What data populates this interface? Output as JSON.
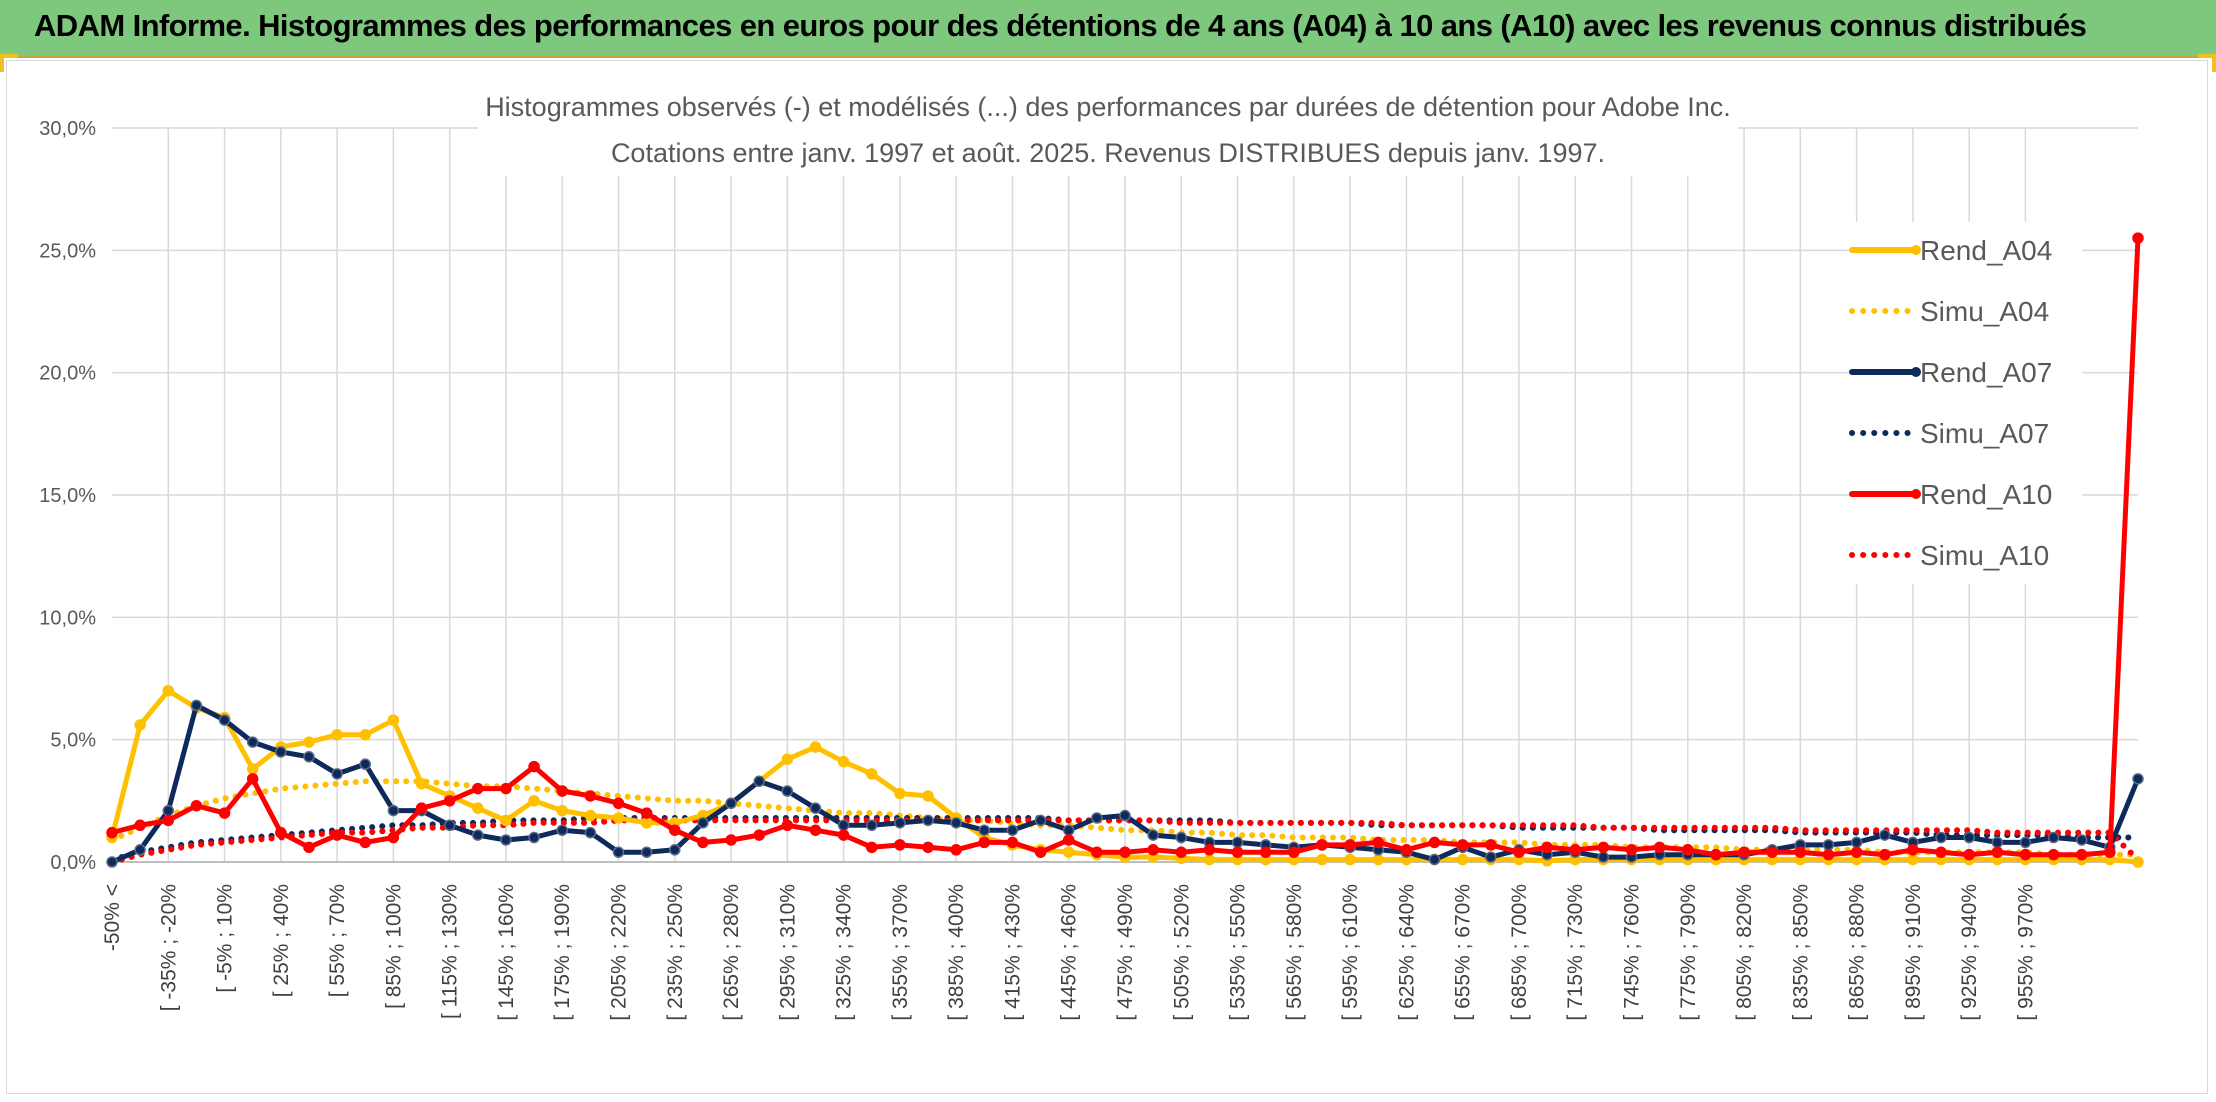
{
  "banner": {
    "title": "ADAM Informe. Histogrammes des performances en euros pour des détentions de 4 ans (A04) à 10 ans (A10) avec les revenus connus distribués"
  },
  "colors": {
    "banner_bg": "#7ec87e",
    "A04": "#ffc000",
    "A07": "#0e2a5c",
    "A10": "#ff0000",
    "grid": "#d9d9d9"
  },
  "chart_data": {
    "type": "line",
    "title": "Histogrammes observés (-) et modélisés (...) des performances par durées de détention pour Adobe Inc.",
    "subtitle": "Cotations entre janv. 1997 et août. 2025. Revenus DISTRIBUES depuis janv. 1997.",
    "ylim": [
      0,
      30
    ],
    "yticks": [
      "0,0%",
      "5,0%",
      "10,0%",
      "15,0%",
      "20,0%",
      "25,0%",
      "30,0%"
    ],
    "x_tick_labels": [
      "-50% <",
      "[ -35% ; -20%",
      "[ -5% ; 10%",
      "[ 25% ; 40%",
      "[ 55% ; 70%",
      "[ 85% ; 100%",
      "[ 115% ; 130%",
      "[ 145% ; 160%",
      "[ 175% ; 190%",
      "[ 205% ; 220%",
      "[ 235% ; 250%",
      "[ 265% ; 280%",
      "[ 295% ; 310%",
      "[ 325% ; 340%",
      "[ 355% ; 370%",
      "[ 385% ; 400%",
      "[ 415% ; 430%",
      "[ 445% ; 460%",
      "[ 475% ; 490%",
      "[ 505% ; 520%",
      "[ 535% ; 550%",
      "[ 565% ; 580%",
      "[ 595% ; 610%",
      "[ 625% ; 640%",
      "[ 655% ; 670%",
      "[ 685% ; 700%",
      "[ 715% ; 730%",
      "[ 745% ; 760%",
      "[ 775% ; 790%",
      "[ 805% ; 820%",
      "[ 835% ; 850%",
      "[ 865% ; 880%",
      "[ 895% ; 910%",
      "[ 925% ; 940%",
      "[ 955% ; 970%"
    ],
    "n_points": 73,
    "grid": true,
    "legend_position": "right",
    "series": [
      {
        "name": "Rend_A04",
        "style": "solid",
        "color": "#ffc000",
        "values": [
          1.0,
          5.6,
          7.0,
          6.3,
          5.9,
          3.8,
          4.7,
          4.9,
          5.2,
          5.2,
          5.8,
          3.2,
          2.7,
          2.2,
          1.7,
          2.5,
          2.1,
          1.9,
          1.8,
          1.6,
          1.6,
          1.9,
          2.4,
          3.3,
          4.2,
          4.7,
          4.1,
          3.6,
          2.8,
          2.7,
          1.8,
          1.0,
          0.7,
          0.5,
          0.4,
          0.3,
          0.2,
          0.2,
          0.15,
          0.1,
          0.1,
          0.1,
          0.1,
          0.1,
          0.1,
          0.1,
          0.1,
          0.1,
          0.1,
          0.1,
          0.1,
          0.05,
          0.1,
          0.1,
          0.1,
          0.1,
          0.1,
          0.1,
          0.1,
          0.1,
          0.1,
          0.1,
          0.1,
          0.1,
          0.1,
          0.1,
          0.1,
          0.1,
          0.1,
          0.1,
          0.1,
          0.1,
          0.0
        ]
      },
      {
        "name": "Simu_A04",
        "style": "dotted",
        "color": "#ffc000",
        "values": [
          0.9,
          1.4,
          1.9,
          2.3,
          2.6,
          2.8,
          3.0,
          3.1,
          3.2,
          3.3,
          3.3,
          3.3,
          3.2,
          3.1,
          3.1,
          3.0,
          2.9,
          2.8,
          2.7,
          2.6,
          2.5,
          2.5,
          2.4,
          2.3,
          2.2,
          2.1,
          2.0,
          2.0,
          1.9,
          1.8,
          1.7,
          1.7,
          1.6,
          1.5,
          1.5,
          1.4,
          1.3,
          1.3,
          1.2,
          1.2,
          1.1,
          1.1,
          1.0,
          1.0,
          1.0,
          0.9,
          0.9,
          0.9,
          0.8,
          0.8,
          0.8,
          0.7,
          0.7,
          0.7,
          0.6,
          0.6,
          0.6,
          0.6,
          0.5,
          0.5,
          0.5,
          0.5,
          0.5,
          0.4,
          0.4,
          0.4,
          0.4,
          0.4,
          0.4,
          0.3,
          0.3,
          0.3,
          0.3
        ]
      },
      {
        "name": "Rend_A07",
        "style": "solid",
        "color": "#0e2a5c",
        "values": [
          0.0,
          0.5,
          2.1,
          6.4,
          5.8,
          4.9,
          4.5,
          4.3,
          3.6,
          4.0,
          2.1,
          2.1,
          1.5,
          1.1,
          0.9,
          1.0,
          1.3,
          1.2,
          0.4,
          0.4,
          0.5,
          1.6,
          2.4,
          3.3,
          2.9,
          2.2,
          1.5,
          1.5,
          1.6,
          1.7,
          1.6,
          1.3,
          1.3,
          1.7,
          1.3,
          1.8,
          1.9,
          1.1,
          1.0,
          0.8,
          0.8,
          0.7,
          0.6,
          0.7,
          0.6,
          0.5,
          0.4,
          0.1,
          0.6,
          0.2,
          0.5,
          0.3,
          0.4,
          0.2,
          0.2,
          0.3,
          0.3,
          0.3,
          0.3,
          0.5,
          0.7,
          0.7,
          0.8,
          1.1,
          0.8,
          1.0,
          1.0,
          0.8,
          0.8,
          1.0,
          0.9,
          0.6,
          3.4
        ]
      },
      {
        "name": "Simu_A07",
        "style": "dotted",
        "color": "#0e2a5c",
        "values": [
          0.1,
          0.4,
          0.6,
          0.8,
          0.9,
          1.0,
          1.1,
          1.2,
          1.3,
          1.4,
          1.5,
          1.5,
          1.6,
          1.6,
          1.7,
          1.7,
          1.7,
          1.8,
          1.8,
          1.8,
          1.8,
          1.8,
          1.8,
          1.8,
          1.8,
          1.8,
          1.8,
          1.8,
          1.8,
          1.8,
          1.8,
          1.8,
          1.8,
          1.8,
          1.7,
          1.7,
          1.7,
          1.7,
          1.7,
          1.7,
          1.6,
          1.6,
          1.6,
          1.6,
          1.6,
          1.5,
          1.5,
          1.5,
          1.5,
          1.5,
          1.4,
          1.4,
          1.4,
          1.4,
          1.4,
          1.3,
          1.3,
          1.3,
          1.3,
          1.3,
          1.2,
          1.2,
          1.2,
          1.2,
          1.2,
          1.1,
          1.1,
          1.1,
          1.1,
          1.1,
          1.0,
          1.0,
          1.0
        ]
      },
      {
        "name": "Rend_A10",
        "style": "solid",
        "color": "#ff0000",
        "values": [
          1.2,
          1.5,
          1.7,
          2.3,
          2.0,
          3.4,
          1.2,
          0.6,
          1.1,
          0.8,
          1.0,
          2.2,
          2.5,
          3.0,
          3.0,
          3.9,
          2.9,
          2.7,
          2.4,
          2.0,
          1.3,
          0.8,
          0.9,
          1.1,
          1.5,
          1.3,
          1.1,
          0.6,
          0.7,
          0.6,
          0.5,
          0.8,
          0.8,
          0.4,
          0.9,
          0.4,
          0.4,
          0.5,
          0.4,
          0.5,
          0.4,
          0.4,
          0.4,
          0.7,
          0.7,
          0.8,
          0.5,
          0.8,
          0.7,
          0.7,
          0.4,
          0.6,
          0.5,
          0.6,
          0.5,
          0.6,
          0.5,
          0.3,
          0.4,
          0.4,
          0.4,
          0.3,
          0.4,
          0.3,
          0.5,
          0.4,
          0.3,
          0.4,
          0.3,
          0.3,
          0.3,
          0.4,
          25.5
        ]
      },
      {
        "name": "Simu_A10",
        "style": "dotted",
        "color": "#ff0000",
        "values": [
          0.0,
          0.3,
          0.5,
          0.7,
          0.8,
          0.9,
          1.0,
          1.1,
          1.2,
          1.2,
          1.3,
          1.4,
          1.4,
          1.5,
          1.5,
          1.6,
          1.6,
          1.6,
          1.7,
          1.7,
          1.7,
          1.7,
          1.7,
          1.7,
          1.7,
          1.7,
          1.7,
          1.7,
          1.7,
          1.7,
          1.7,
          1.7,
          1.7,
          1.7,
          1.7,
          1.7,
          1.7,
          1.7,
          1.6,
          1.6,
          1.6,
          1.6,
          1.6,
          1.6,
          1.6,
          1.6,
          1.5,
          1.5,
          1.5,
          1.5,
          1.5,
          1.5,
          1.5,
          1.4,
          1.4,
          1.4,
          1.4,
          1.4,
          1.4,
          1.4,
          1.3,
          1.3,
          1.3,
          1.3,
          1.3,
          1.3,
          1.3,
          1.2,
          1.2,
          1.2,
          1.2,
          1.2,
          0.1
        ]
      }
    ]
  }
}
